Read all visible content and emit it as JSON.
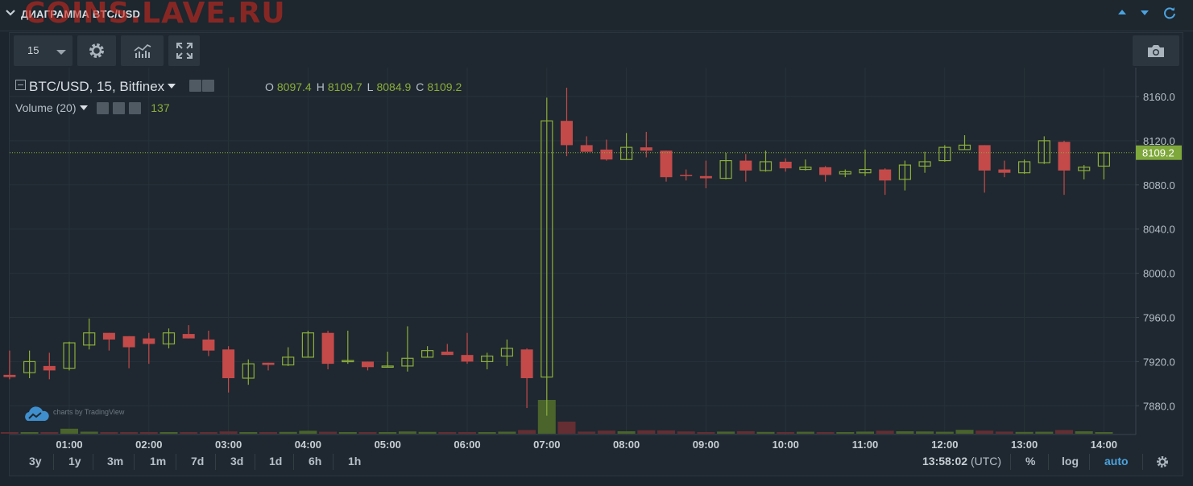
{
  "header": {
    "title": "ДИАГРАММА BTC/USD",
    "watermark": "COINS.LAVE.RU"
  },
  "toolbar": {
    "interval": "15",
    "icons": [
      "gear-icon",
      "indicators-icon",
      "fullscreen-icon",
      "camera-icon"
    ]
  },
  "legend": {
    "symbol": "BTC/USD, 15, Bitfinex",
    "ohlc": {
      "o_label": "O",
      "o": "8097.4",
      "h_label": "H",
      "h": "8109.7",
      "l_label": "L",
      "l": "8084.9",
      "c_label": "C",
      "c": "8109.2"
    },
    "volume_label": "Volume (20)",
    "volume_value": "137"
  },
  "branding": "charts by TradingView",
  "bottom": {
    "ranges": [
      "3y",
      "1y",
      "3m",
      "1m",
      "7d",
      "3d",
      "1d",
      "6h",
      "1h"
    ],
    "clock": "13:58:02",
    "tz": "(UTC)",
    "percent": "%",
    "log": "log",
    "auto": "auto"
  },
  "colors": {
    "up": "#8aae3a",
    "down": "#c44a4a",
    "last_price_bg": "#7ea83b"
  },
  "chart_data": {
    "type": "candlestick",
    "symbol": "BTC/USD",
    "interval_minutes": 15,
    "x_ticks": [
      "01:00",
      "02:00",
      "03:00",
      "04:00",
      "05:00",
      "06:00",
      "07:00",
      "08:00",
      "09:00",
      "10:00",
      "11:00",
      "12:00",
      "13:00",
      "14:00"
    ],
    "y_ticks": [
      "8160.0",
      "8120.0",
      "8080.0",
      "8040.0",
      "8000.0",
      "7960.0",
      "7920.0",
      "7880.0"
    ],
    "ylim": [
      7860,
      8175
    ],
    "last_price": "8109.2",
    "grid": true,
    "candles": [
      {
        "t": "00:15",
        "o": 7908,
        "h": 7930,
        "l": 7904,
        "c": 7906
      },
      {
        "t": "00:30",
        "o": 7910,
        "h": 7930,
        "l": 7905,
        "c": 7920
      },
      {
        "t": "00:45",
        "o": 7916,
        "h": 7928,
        "l": 7904,
        "c": 7912
      },
      {
        "t": "01:00",
        "o": 7914,
        "h": 7938,
        "l": 7912,
        "c": 7937
      },
      {
        "t": "01:15",
        "o": 7935,
        "h": 7959,
        "l": 7931,
        "c": 7946
      },
      {
        "t": "01:30",
        "o": 7946,
        "h": 7946,
        "l": 7930,
        "c": 7940
      },
      {
        "t": "01:45",
        "o": 7943,
        "h": 7943,
        "l": 7914,
        "c": 7933
      },
      {
        "t": "02:00",
        "o": 7941,
        "h": 7946,
        "l": 7918,
        "c": 7936
      },
      {
        "t": "02:15",
        "o": 7936,
        "h": 7950,
        "l": 7932,
        "c": 7946
      },
      {
        "t": "02:30",
        "o": 7945,
        "h": 7953,
        "l": 7941,
        "c": 7941
      },
      {
        "t": "02:45",
        "o": 7940,
        "h": 7948,
        "l": 7925,
        "c": 7930
      },
      {
        "t": "03:00",
        "o": 7931,
        "h": 7934,
        "l": 7892,
        "c": 7905
      },
      {
        "t": "03:15",
        "o": 7905,
        "h": 7922,
        "l": 7899,
        "c": 7918
      },
      {
        "t": "03:30",
        "o": 7919,
        "h": 7919,
        "l": 7912,
        "c": 7917
      },
      {
        "t": "03:45",
        "o": 7917,
        "h": 7933,
        "l": 7916,
        "c": 7924
      },
      {
        "t": "04:00",
        "o": 7924,
        "h": 7948,
        "l": 7924,
        "c": 7946
      },
      {
        "t": "04:15",
        "o": 7946,
        "h": 7948,
        "l": 7913,
        "c": 7918
      },
      {
        "t": "04:30",
        "o": 7920,
        "h": 7948,
        "l": 7918,
        "c": 7921
      },
      {
        "t": "04:45",
        "o": 7920,
        "h": 7920,
        "l": 7912,
        "c": 7915
      },
      {
        "t": "05:00",
        "o": 7916,
        "h": 7929,
        "l": 7915,
        "c": 7916
      },
      {
        "t": "05:15",
        "o": 7916,
        "h": 7952,
        "l": 7911,
        "c": 7923
      },
      {
        "t": "05:30",
        "o": 7924,
        "h": 7934,
        "l": 7924,
        "c": 7930
      },
      {
        "t": "05:45",
        "o": 7929,
        "h": 7936,
        "l": 7926,
        "c": 7926
      },
      {
        "t": "06:00",
        "o": 7926,
        "h": 7946,
        "l": 7918,
        "c": 7920
      },
      {
        "t": "06:15",
        "o": 7920,
        "h": 7928,
        "l": 7913,
        "c": 7925
      },
      {
        "t": "06:30",
        "o": 7925,
        "h": 7940,
        "l": 7916,
        "c": 7932
      },
      {
        "t": "06:45",
        "o": 7931,
        "h": 7932,
        "l": 7878,
        "c": 7905
      },
      {
        "t": "07:00",
        "o": 7906,
        "h": 8159,
        "l": 7871,
        "c": 8138
      },
      {
        "t": "07:15",
        "o": 8138,
        "h": 8168,
        "l": 8106,
        "c": 8116
      },
      {
        "t": "07:30",
        "o": 8116,
        "h": 8124,
        "l": 8110,
        "c": 8110
      },
      {
        "t": "07:45",
        "o": 8112,
        "h": 8121,
        "l": 8102,
        "c": 8103
      },
      {
        "t": "08:00",
        "o": 8103,
        "h": 8127,
        "l": 8103,
        "c": 8114
      },
      {
        "t": "08:15",
        "o": 8114,
        "h": 8128,
        "l": 8105,
        "c": 8111
      },
      {
        "t": "08:30",
        "o": 8111,
        "h": 8111,
        "l": 8083,
        "c": 8087
      },
      {
        "t": "08:45",
        "o": 8089,
        "h": 8094,
        "l": 8084,
        "c": 8088
      },
      {
        "t": "09:00",
        "o": 8088,
        "h": 8102,
        "l": 8077,
        "c": 8086
      },
      {
        "t": "09:15",
        "o": 8086,
        "h": 8109,
        "l": 8085,
        "c": 8102
      },
      {
        "t": "09:30",
        "o": 8102,
        "h": 8108,
        "l": 8083,
        "c": 8093
      },
      {
        "t": "09:45",
        "o": 8093,
        "h": 8111,
        "l": 8092,
        "c": 8101
      },
      {
        "t": "10:00",
        "o": 8101,
        "h": 8104,
        "l": 8092,
        "c": 8095
      },
      {
        "t": "10:15",
        "o": 8094,
        "h": 8103,
        "l": 8093,
        "c": 8096
      },
      {
        "t": "10:30",
        "o": 8096,
        "h": 8097,
        "l": 8083,
        "c": 8089
      },
      {
        "t": "10:45",
        "o": 8090,
        "h": 8094,
        "l": 8087,
        "c": 8092
      },
      {
        "t": "11:00",
        "o": 8091,
        "h": 8112,
        "l": 8088,
        "c": 8094
      },
      {
        "t": "11:15",
        "o": 8094,
        "h": 8095,
        "l": 8071,
        "c": 8084
      },
      {
        "t": "11:30",
        "o": 8085,
        "h": 8102,
        "l": 8075,
        "c": 8098
      },
      {
        "t": "11:45",
        "o": 8097,
        "h": 8110,
        "l": 8091,
        "c": 8101
      },
      {
        "t": "12:00",
        "o": 8102,
        "h": 8116,
        "l": 8101,
        "c": 8114
      },
      {
        "t": "12:15",
        "o": 8112,
        "h": 8125,
        "l": 8112,
        "c": 8116
      },
      {
        "t": "12:30",
        "o": 8116,
        "h": 8116,
        "l": 8073,
        "c": 8093
      },
      {
        "t": "12:45",
        "o": 8094,
        "h": 8102,
        "l": 8087,
        "c": 8091
      },
      {
        "t": "13:00",
        "o": 8091,
        "h": 8103,
        "l": 8090,
        "c": 8101
      },
      {
        "t": "13:15",
        "o": 8100,
        "h": 8124,
        "l": 8099,
        "c": 8120
      },
      {
        "t": "13:30",
        "o": 8119,
        "h": 8120,
        "l": 8071,
        "c": 8093
      },
      {
        "t": "13:45",
        "o": 8093,
        "h": 8098,
        "l": 8085,
        "c": 8096
      },
      {
        "t": "14:00",
        "o": 8097,
        "h": 8110,
        "l": 8085,
        "c": 8109
      }
    ],
    "volume": [
      10,
      18,
      11,
      62,
      25,
      14,
      12,
      15,
      11,
      10,
      9,
      28,
      14,
      12,
      22,
      36,
      24,
      10,
      12,
      9,
      28,
      22,
      12,
      20,
      18,
      25,
      45,
      420,
      150,
      26,
      38,
      30,
      42,
      40,
      28,
      20,
      26,
      30,
      22,
      18,
      24,
      20,
      18,
      26,
      36,
      30,
      28,
      24,
      48,
      38,
      26,
      22,
      24,
      45,
      30,
      18
    ]
  }
}
